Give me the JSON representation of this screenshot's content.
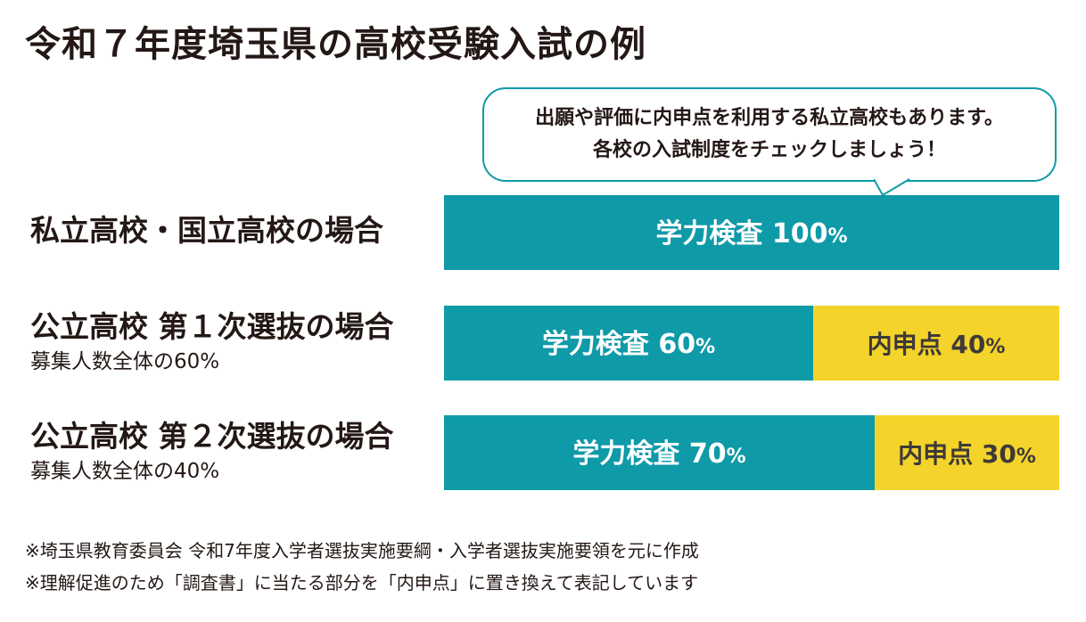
{
  "title": "令和７年度埼玉県の高校受験入試の例",
  "bubble": {
    "line1": "出願や評価に内申点を利用する私立高校もあります。",
    "line2": "各校の入試制度をチェックしましょう！"
  },
  "colors": {
    "academic": "#0f9aa8",
    "naishin": "#f4d32a",
    "label_on_academic": "#ffffff",
    "label_on_naishin": "#3e3a39"
  },
  "chart_data": {
    "type": "bar",
    "stacked": true,
    "orientation": "horizontal",
    "xlim": [
      0,
      100
    ],
    "categories": [
      "私立高校・国立高校の場合",
      "公立高校 第１次選抜の場合",
      "公立高校 第２次選抜の場合"
    ],
    "subtitles": [
      "",
      "募集人数全体の60%",
      "募集人数全体の40%"
    ],
    "series": [
      {
        "key": "academic",
        "name": "学力検査",
        "values": [
          100,
          60,
          70
        ]
      },
      {
        "key": "naishin",
        "name": "内申点",
        "values": [
          0,
          40,
          30
        ]
      }
    ],
    "unit": "%"
  },
  "notes": [
    "※埼玉県教育委員会 令和7年度入学者選抜実施要綱・入学者選抜実施要領を元に作成",
    "※理解促進のため「調査書」に当たる部分を「内申点」に置き換えて表記しています"
  ]
}
